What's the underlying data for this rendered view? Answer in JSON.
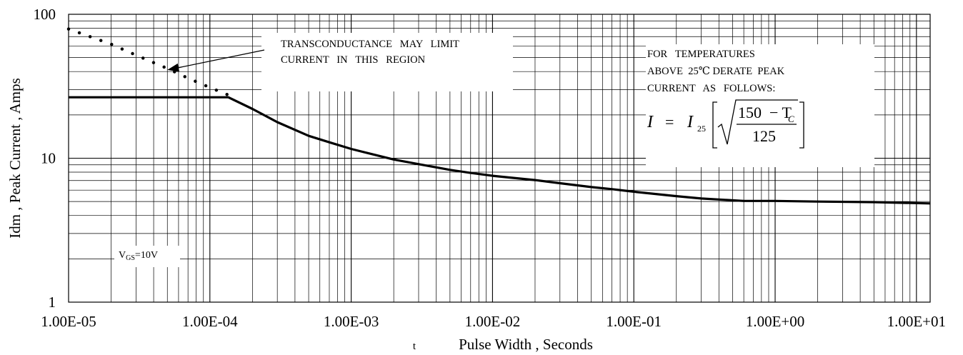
{
  "chart_data": {
    "type": "line",
    "title": "",
    "xlabel_prefix": "t",
    "xlabel": "Pulse Width , Seconds",
    "ylabel": "Idm , Peak Current , Amps",
    "x_scale": "log",
    "y_scale": "log",
    "xlim": [
      1e-05,
      12.5
    ],
    "ylim": [
      1,
      100
    ],
    "grid": true,
    "x_ticks": [
      {
        "value": 1e-05,
        "label": "1.00E-05"
      },
      {
        "value": 0.0001,
        "label": "1.00E-04"
      },
      {
        "value": 0.001,
        "label": "1.00E-03"
      },
      {
        "value": 0.01,
        "label": "1.00E-02"
      },
      {
        "value": 0.1,
        "label": "1.00E-01"
      },
      {
        "value": 1,
        "label": "1.00E+00"
      },
      {
        "value": 10,
        "label": "1.00E+01"
      }
    ],
    "y_ticks": [
      {
        "value": 1,
        "label": "1"
      },
      {
        "value": 10,
        "label": "10"
      },
      {
        "value": 100,
        "label": "100"
      }
    ],
    "series": [
      {
        "style": "solid",
        "x": [
          1e-05,
          0.000135,
          0.0002,
          0.0003,
          0.0005,
          0.0007,
          0.001,
          0.0015,
          0.002,
          0.003,
          0.005,
          0.007,
          0.01,
          0.02,
          0.03,
          0.05,
          0.07,
          0.1,
          0.2,
          0.3,
          0.6,
          1,
          2,
          5,
          12.5
        ],
        "y": [
          26.5,
          26.5,
          22,
          17.8,
          14.3,
          12.9,
          11.6,
          10.5,
          9.8,
          9.1,
          8.3,
          7.9,
          7.55,
          7.05,
          6.7,
          6.3,
          6.1,
          5.85,
          5.45,
          5.25,
          5.05,
          5.05,
          5.0,
          4.95,
          4.85
        ]
      },
      {
        "style": "dotted",
        "x": [
          1e-05,
          2e-05,
          3e-05,
          5e-05,
          7e-05,
          0.0001,
          0.000135
        ],
        "y": [
          79,
          62,
          52,
          42,
          36,
          31,
          27.5
        ]
      }
    ],
    "annotations": {
      "transconductance": {
        "lines": [
          "TRANSCONDUCTANCE   MAY   LIMIT",
          "CURRENT   IN   THIS   REGION"
        ],
        "arrow_target": {
          "x": 5e-05,
          "y": 42
        }
      },
      "derating": {
        "lines": [
          "FOR   TEMPERATURES",
          "ABOVE  25℃ DERATE  PEAK",
          "CURRENT   AS   FOLLOWS:"
        ],
        "formula": {
          "lhs": "I",
          "equals": "=",
          "var": "I",
          "subscript": "25",
          "numerator": "150  − T",
          "numerator_sub": "C",
          "denominator": "125"
        }
      },
      "vgs": {
        "main": "V",
        "sub": "GS",
        "rest": "=10V"
      }
    }
  }
}
